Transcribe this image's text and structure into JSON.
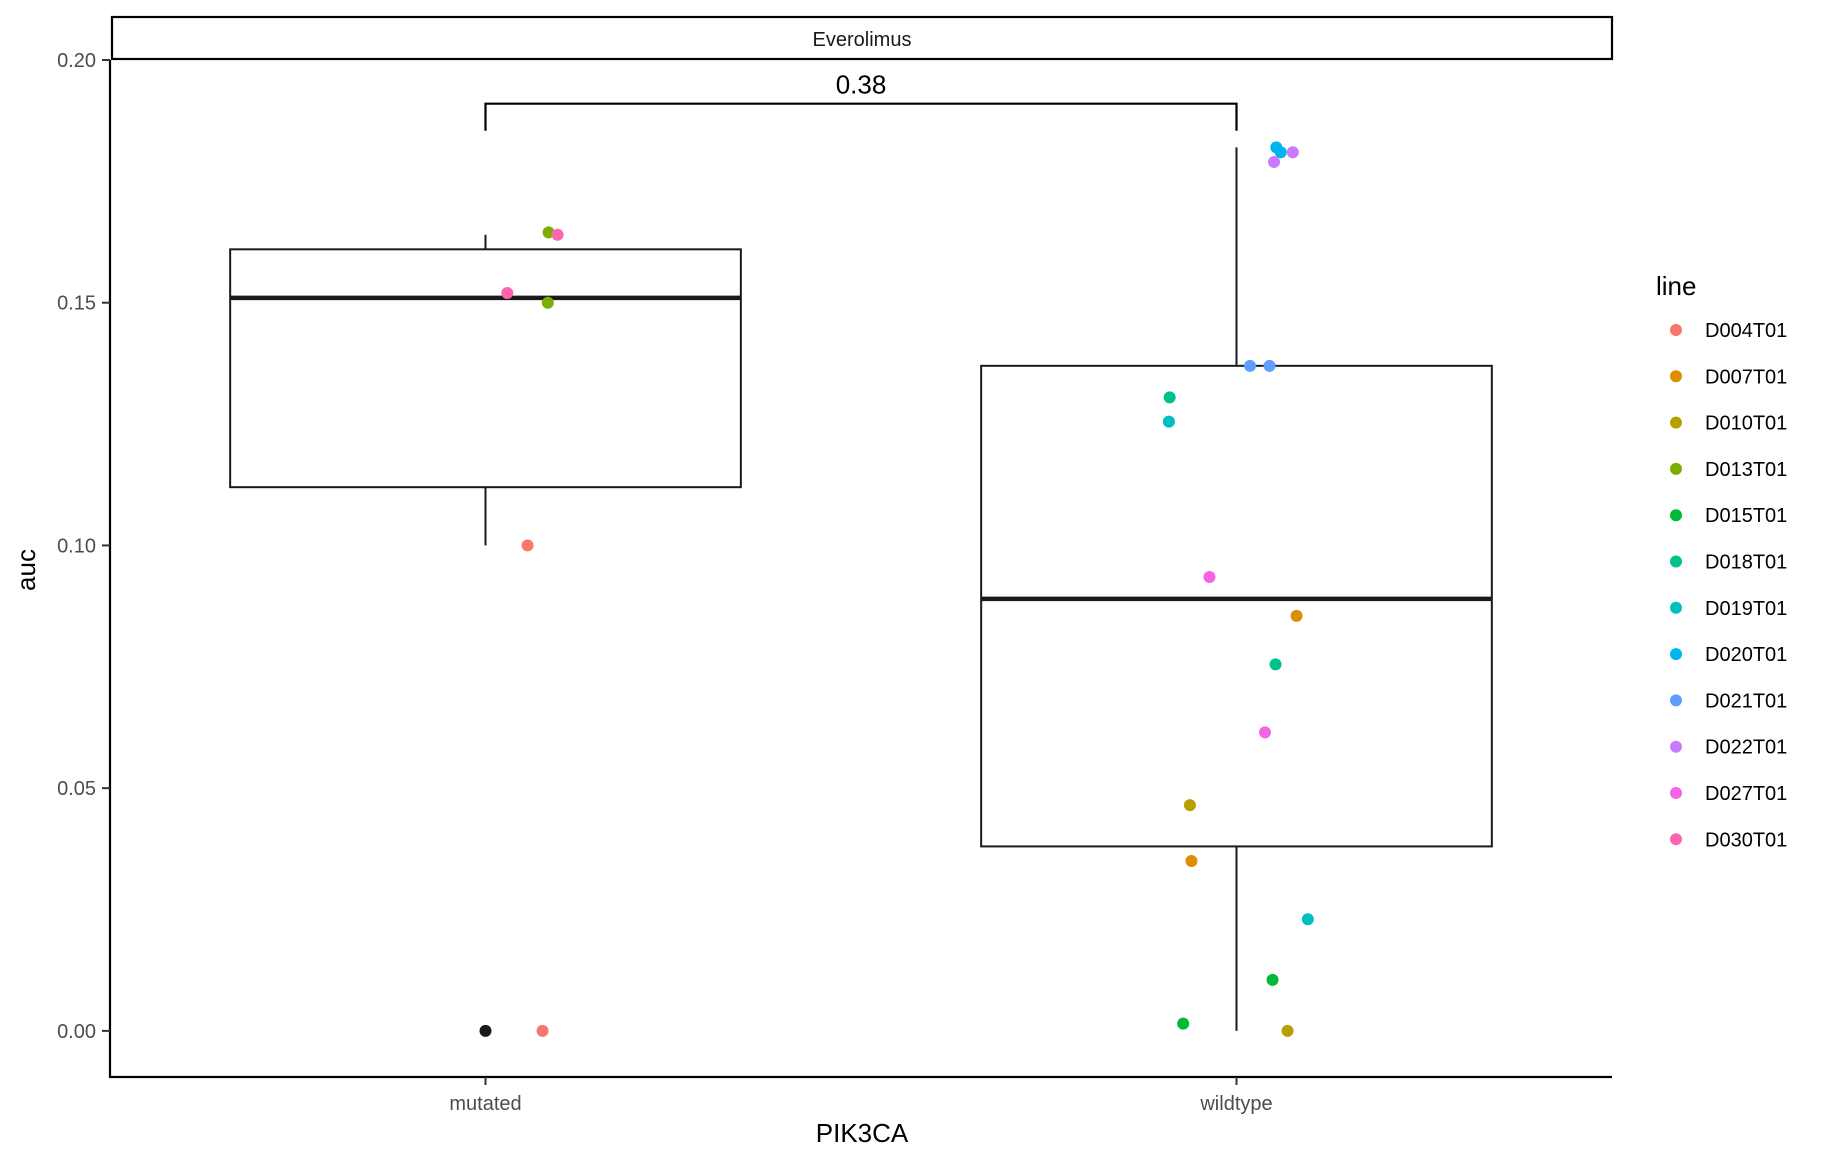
{
  "chart_data": {
    "type": "boxplot",
    "facet_title": "Everolimus",
    "xlabel": "PIK3CA",
    "ylabel": "auc",
    "categories": [
      "mutated",
      "wildtype"
    ],
    "ylim": [
      -0.0095,
      0.2
    ],
    "y_ticks": [
      0.0,
      0.05,
      0.1,
      0.15,
      0.2
    ],
    "y_tick_labels": [
      "0.00",
      "0.05",
      "0.10",
      "0.15",
      "0.20"
    ],
    "boxes": [
      {
        "category": "mutated",
        "whisker_low": 0.1,
        "q1": 0.112,
        "median": 0.151,
        "q3": 0.161,
        "whisker_high": 0.164,
        "outliers": [
          0.0
        ]
      },
      {
        "category": "wildtype",
        "whisker_low": 0.0,
        "q1": 0.038,
        "median": 0.089,
        "q3": 0.137,
        "whisker_high": 0.182,
        "outliers": []
      }
    ],
    "comparison": {
      "from": "mutated",
      "to": "wildtype",
      "label": "0.38",
      "y": 0.191
    },
    "legend": {
      "title": "line",
      "position": "right",
      "entries": [
        {
          "name": "D004T01",
          "color": "#F8766D"
        },
        {
          "name": "D007T01",
          "color": "#DE8C00"
        },
        {
          "name": "D010T01",
          "color": "#B79F00"
        },
        {
          "name": "D013T01",
          "color": "#7CAE00"
        },
        {
          "name": "D015T01",
          "color": "#00BA38"
        },
        {
          "name": "D018T01",
          "color": "#00C08B"
        },
        {
          "name": "D019T01",
          "color": "#00BFC4"
        },
        {
          "name": "D020T01",
          "color": "#00B4F0"
        },
        {
          "name": "D021T01",
          "color": "#619CFF"
        },
        {
          "name": "D022T01",
          "color": "#C77CFF"
        },
        {
          "name": "D027T01",
          "color": "#F564E3"
        },
        {
          "name": "D030T01",
          "color": "#FF64B0"
        }
      ]
    },
    "points": [
      {
        "category": "mutated",
        "line": "D013T01",
        "x_jitter": 0.084,
        "y": 0.1645
      },
      {
        "category": "mutated",
        "line": "D030T01",
        "x_jitter": 0.096,
        "y": 0.164
      },
      {
        "category": "mutated",
        "line": "D030T01",
        "x_jitter": 0.029,
        "y": 0.152
      },
      {
        "category": "mutated",
        "line": "D013T01",
        "x_jitter": 0.083,
        "y": 0.15
      },
      {
        "category": "mutated",
        "line": "D004T01",
        "x_jitter": 0.056,
        "y": 0.1
      },
      {
        "category": "mutated",
        "line": "D004T01",
        "x_jitter": 0.076,
        "y": 0.0
      },
      {
        "category": "wildtype",
        "line": "D020T01",
        "x_jitter": 0.053,
        "y": 0.182
      },
      {
        "category": "wildtype",
        "line": "D020T01",
        "x_jitter": 0.059,
        "y": 0.181
      },
      {
        "category": "wildtype",
        "line": "D022T01",
        "x_jitter": 0.075,
        "y": 0.181
      },
      {
        "category": "wildtype",
        "line": "D022T01",
        "x_jitter": 0.05,
        "y": 0.179
      },
      {
        "category": "wildtype",
        "line": "D021T01",
        "x_jitter": 0.018,
        "y": 0.137
      },
      {
        "category": "wildtype",
        "line": "D021T01",
        "x_jitter": 0.044,
        "y": 0.137
      },
      {
        "category": "wildtype",
        "line": "D018T01",
        "x_jitter": -0.089,
        "y": 0.1305
      },
      {
        "category": "wildtype",
        "line": "D019T01",
        "x_jitter": -0.09,
        "y": 0.1255
      },
      {
        "category": "wildtype",
        "line": "D027T01",
        "x_jitter": -0.036,
        "y": 0.0935
      },
      {
        "category": "wildtype",
        "line": "D007T01",
        "x_jitter": 0.08,
        "y": 0.0855
      },
      {
        "category": "wildtype",
        "line": "D018T01",
        "x_jitter": 0.052,
        "y": 0.0755
      },
      {
        "category": "wildtype",
        "line": "D027T01",
        "x_jitter": 0.038,
        "y": 0.0615
      },
      {
        "category": "wildtype",
        "line": "D010T01",
        "x_jitter": -0.062,
        "y": 0.0465
      },
      {
        "category": "wildtype",
        "line": "D007T01",
        "x_jitter": -0.06,
        "y": 0.035
      },
      {
        "category": "wildtype",
        "line": "D019T01",
        "x_jitter": 0.095,
        "y": 0.023
      },
      {
        "category": "wildtype",
        "line": "D015T01",
        "x_jitter": 0.048,
        "y": 0.0105
      },
      {
        "category": "wildtype",
        "line": "D015T01",
        "x_jitter": -0.071,
        "y": 0.0015
      },
      {
        "category": "wildtype",
        "line": "D010T01",
        "x_jitter": 0.068,
        "y": 0.0
      }
    ]
  }
}
